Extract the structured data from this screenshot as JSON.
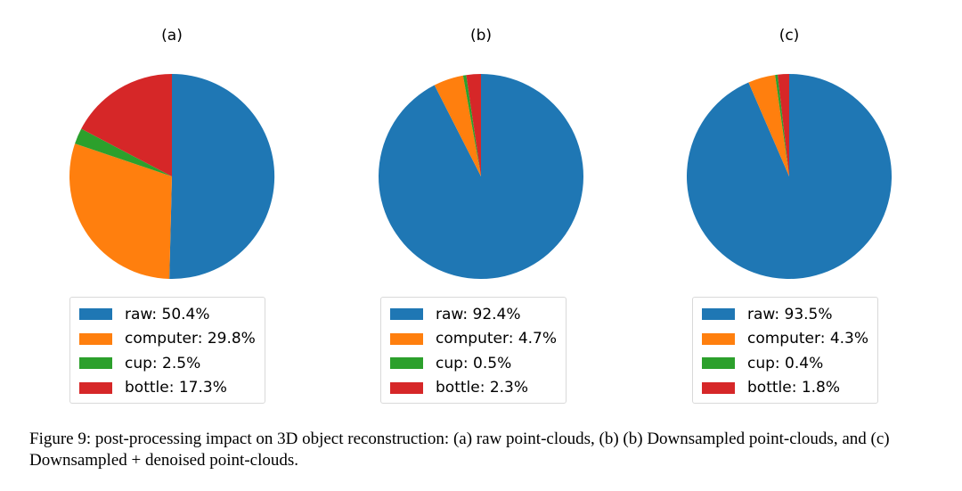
{
  "chart_data": [
    {
      "type": "pie",
      "title": "(a)",
      "labels": [
        "raw",
        "computer",
        "cup",
        "bottle"
      ],
      "legend": [
        "raw: 50.4%",
        "computer: 29.8%",
        "cup: 2.5%",
        "bottle: 17.3%"
      ],
      "values": [
        50.4,
        29.8,
        2.5,
        17.3
      ],
      "colors": [
        "#1f77b4",
        "#ff7f0e",
        "#2ca02c",
        "#d62728"
      ],
      "start_angle_deg": 90,
      "direction": "clockwise",
      "legend_position": "bottom"
    },
    {
      "type": "pie",
      "title": "(b)",
      "labels": [
        "raw",
        "computer",
        "cup",
        "bottle"
      ],
      "legend": [
        "raw: 92.4%",
        "computer: 4.7%",
        "cup: 0.5%",
        "bottle: 2.3%"
      ],
      "values": [
        92.4,
        4.7,
        0.5,
        2.3
      ],
      "colors": [
        "#1f77b4",
        "#ff7f0e",
        "#2ca02c",
        "#d62728"
      ],
      "start_angle_deg": 90,
      "direction": "clockwise",
      "legend_position": "bottom"
    },
    {
      "type": "pie",
      "title": "(c)",
      "labels": [
        "raw",
        "computer",
        "cup",
        "bottle"
      ],
      "legend": [
        "raw: 93.5%",
        "computer: 4.3%",
        "cup: 0.4%",
        "bottle: 1.8%"
      ],
      "values": [
        93.5,
        4.3,
        0.4,
        1.8
      ],
      "colors": [
        "#1f77b4",
        "#ff7f0e",
        "#2ca02c",
        "#d62728"
      ],
      "start_angle_deg": 90,
      "direction": "clockwise",
      "legend_position": "bottom"
    }
  ],
  "caption": "Figure 9: post-processing impact on 3D object reconstruction: (a) raw point-clouds, (b) (b) Downsampled point-clouds, and (c) Downsampled + denoised point-clouds."
}
